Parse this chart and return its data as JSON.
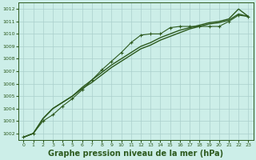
{
  "bg_color": "#cceee8",
  "line_color": "#2d5a1e",
  "grid_color": "#aacfcc",
  "xlabel": "Graphe pression niveau de la mer (hPa)",
  "xlabel_fontsize": 7,
  "xlim": [
    -0.5,
    23.5
  ],
  "ylim": [
    1001.5,
    1012.5
  ],
  "yticks": [
    1002,
    1003,
    1004,
    1005,
    1006,
    1007,
    1008,
    1009,
    1010,
    1011,
    1012
  ],
  "xticks": [
    0,
    1,
    2,
    3,
    4,
    5,
    6,
    7,
    8,
    9,
    10,
    11,
    12,
    13,
    14,
    15,
    16,
    17,
    18,
    19,
    20,
    21,
    22,
    23
  ],
  "series": [
    {
      "y": [
        1001.7,
        1002.0,
        1003.0,
        1003.5,
        1004.2,
        1004.8,
        1005.5,
        1006.3,
        1007.1,
        1007.8,
        1008.5,
        1009.3,
        1009.9,
        1010.0,
        1010.0,
        1010.5,
        1010.6,
        1010.6,
        1010.6,
        1010.6,
        1010.6,
        1011.0,
        1011.5,
        1011.4
      ],
      "marker": true,
      "linewidth": 0.8
    },
    {
      "y": [
        1001.7,
        1002.0,
        1003.2,
        1004.0,
        1004.5,
        1005.0,
        1005.6,
        1006.1,
        1006.7,
        1007.3,
        1007.8,
        1008.3,
        1008.8,
        1009.1,
        1009.5,
        1009.8,
        1010.1,
        1010.4,
        1010.6,
        1010.8,
        1010.9,
        1011.1,
        1011.6,
        1011.4
      ],
      "marker": false,
      "linewidth": 1.0
    },
    {
      "y": [
        1001.7,
        1002.0,
        1003.2,
        1004.0,
        1004.5,
        1005.0,
        1005.7,
        1006.3,
        1006.9,
        1007.5,
        1008.0,
        1008.5,
        1009.0,
        1009.3,
        1009.7,
        1010.0,
        1010.3,
        1010.5,
        1010.7,
        1010.9,
        1011.0,
        1011.2,
        1012.0,
        1011.4
      ],
      "marker": false,
      "linewidth": 1.0
    }
  ]
}
